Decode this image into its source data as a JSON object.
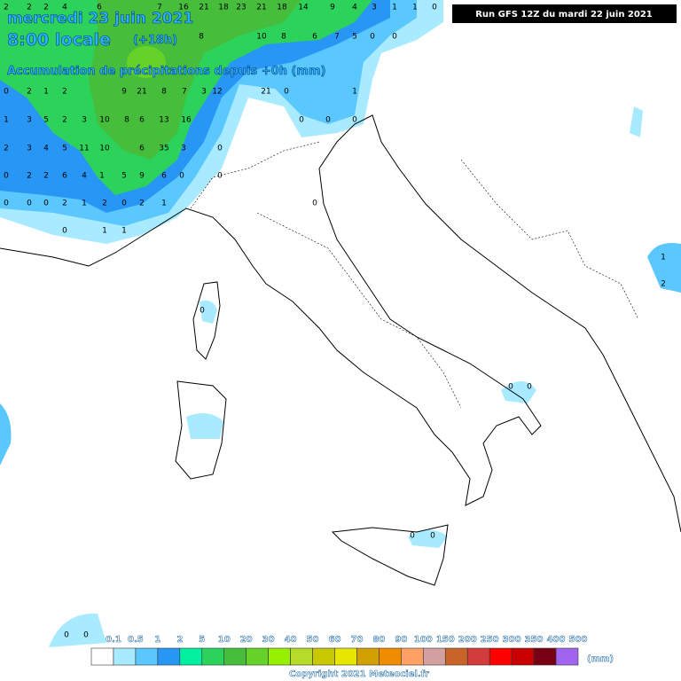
{
  "header": {
    "line1": "mercredi 23 juin 2021",
    "line2": "8:00 locale",
    "offset": "(+18h)",
    "subtitle": "Accumulation de précipitations depuis +0h (mm)"
  },
  "run": "Run GFS 12Z du mardi 22 juin 2021",
  "legend": {
    "labels": [
      "0.1",
      "0.5",
      "1",
      "2",
      "5",
      "10",
      "20",
      "30",
      "40",
      "50",
      "60",
      "70",
      "80",
      "90",
      "100",
      "150",
      "200",
      "250",
      "300",
      "350",
      "400",
      "500"
    ],
    "colors": [
      "#ffffff",
      "#a8eaff",
      "#5ac8ff",
      "#2896f5",
      "#00f0a0",
      "#2cd25a",
      "#46be3c",
      "#64d228",
      "#96f000",
      "#b4dc28",
      "#c8c800",
      "#e6e600",
      "#d2a000",
      "#f08c00",
      "#ffa064",
      "#d2a0a0",
      "#c86428",
      "#d23c3c",
      "#ff0000",
      "#c80000",
      "#780014",
      "#a064f0"
    ],
    "unit": "(mm)"
  },
  "copyright": "Copyright 2021 Meteociel.fr",
  "map_values": [
    "2",
    "2",
    "2",
    "4",
    "6",
    "7",
    "16",
    "21",
    "18",
    "23",
    "21",
    "18",
    "14",
    "9",
    "4",
    "3",
    "1",
    "1",
    "0",
    "8",
    "10",
    "8",
    "6",
    "7",
    "5",
    "0",
    "0",
    "0",
    "2",
    "1",
    "2",
    "9",
    "21",
    "8",
    "7",
    "3",
    "12",
    "21",
    "0",
    "1",
    "1",
    "3",
    "5",
    "2",
    "3",
    "10",
    "8",
    "6",
    "13",
    "16",
    "0",
    "0",
    "0",
    "2",
    "3",
    "4",
    "5",
    "11",
    "10",
    "6",
    "35",
    "3",
    "0",
    "0",
    "2",
    "2",
    "6",
    "4",
    "1",
    "5",
    "9",
    "6",
    "0",
    "0",
    "0",
    "0",
    "0",
    "2",
    "1",
    "2",
    "0",
    "2",
    "1",
    "0",
    "0",
    "1",
    "1",
    "0",
    "0",
    "0",
    "0",
    "0",
    "0",
    "0",
    "1",
    "2"
  ]
}
